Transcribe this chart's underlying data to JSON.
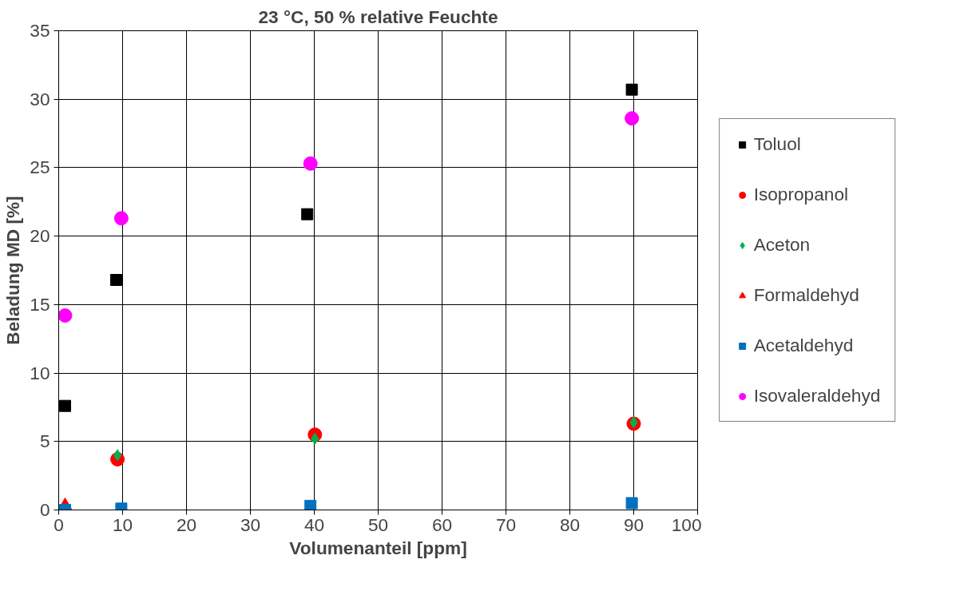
{
  "chart_data": {
    "type": "scatter",
    "title": "23 °C, 50 % relative Feuchte",
    "xlabel": "Volumenanteil [ppm]",
    "ylabel": "Beladung MD [%]",
    "xlim": [
      0,
      100
    ],
    "xticks": [
      0,
      10,
      20,
      30,
      40,
      50,
      60,
      70,
      80,
      90,
      100
    ],
    "ylim": [
      0,
      35
    ],
    "yticks": [
      0,
      5,
      10,
      15,
      20,
      25,
      30,
      35
    ],
    "grid": true,
    "legend": "right",
    "series": [
      {
        "name": "Toluol",
        "color": "#000000",
        "marker": "square",
        "x": [
          1,
          9,
          38.9,
          89.7
        ],
        "values": [
          7.6,
          16.8,
          21.6,
          30.7
        ]
      },
      {
        "name": "Isopropanol",
        "color": "#ff0000",
        "marker": "circle",
        "x": [
          9.2,
          40.1,
          90
        ],
        "values": [
          3.7,
          5.5,
          6.3
        ]
      },
      {
        "name": "Aceton",
        "color": "#00b050",
        "marker": "diamond",
        "x": [
          9.2,
          40.1,
          90
        ],
        "values": [
          4.0,
          5.2,
          6.4
        ]
      },
      {
        "name": "Formaldehyd",
        "color": "#ff0000",
        "marker": "triangle",
        "x": [
          1
        ],
        "values": [
          0
        ]
      },
      {
        "name": "Acetaldehyd",
        "color": "#0070c0",
        "marker": "square",
        "x": [
          1,
          9.8,
          39.4,
          89.7
        ],
        "values": [
          0,
          0.1,
          0.3,
          0.5
        ]
      },
      {
        "name": "Isovaleraldehyd",
        "color": "#ff00ff",
        "marker": "circle",
        "x": [
          1,
          9.8,
          39.4,
          89.7
        ],
        "values": [
          14.2,
          21.3,
          25.3,
          28.6
        ]
      }
    ]
  }
}
